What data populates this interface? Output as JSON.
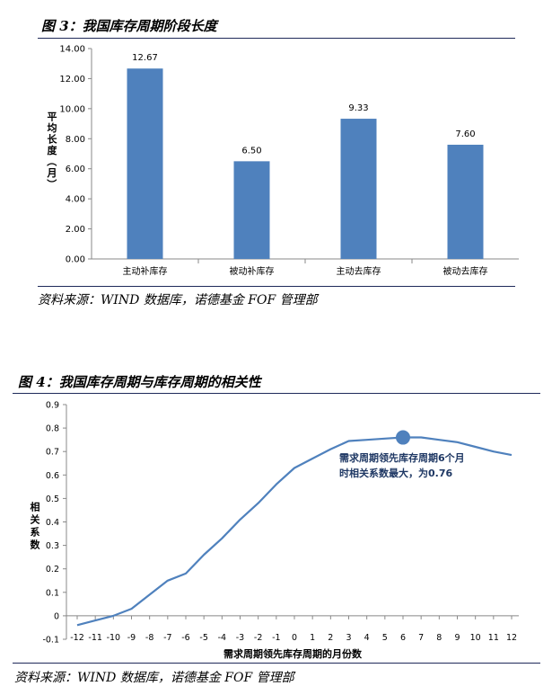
{
  "figure3": {
    "title": "图 3：我国库存周期阶段长度",
    "source": "资料来源：WIND 数据库，诺德基金 FOF 管理部"
  },
  "figure4": {
    "title": "图 4：我国库存周期与库存周期的相关性",
    "source": "资料来源：WIND 数据库，诺德基金 FOF 管理部"
  },
  "colors": {
    "bar": "#4f81bd",
    "line": "#4f81bd",
    "rule": "#1f2a5a",
    "grid": "#d9d9d9"
  },
  "chart_data": [
    {
      "type": "bar",
      "categories": [
        "主动补库存",
        "被动补库存",
        "主动去库存",
        "被动去库存"
      ],
      "values": [
        12.67,
        6.5,
        9.33,
        7.6
      ],
      "data_labels": [
        "12.67",
        "6.50",
        "9.33",
        "7.60"
      ],
      "ylabel": "平均长度（月）",
      "ylim": [
        0,
        14
      ],
      "yticks": [
        "0.00",
        "2.00",
        "4.00",
        "6.00",
        "8.00",
        "10.00",
        "12.00",
        "14.00"
      ],
      "grid": false
    },
    {
      "type": "line",
      "x": [
        -12,
        -11,
        -10,
        -9,
        -8,
        -7,
        -6,
        -5,
        -4,
        -3,
        -2,
        -1,
        0,
        1,
        2,
        3,
        4,
        5,
        6,
        7,
        8,
        9,
        10,
        11,
        12
      ],
      "x_ticks": [
        "-12",
        "-11",
        "-10",
        "-9",
        "-8",
        "-7",
        "-6",
        "-5",
        "-4",
        "-3",
        "-2",
        "-1",
        "0",
        "1",
        "2",
        "3",
        "4",
        "5",
        "6",
        "7",
        "8",
        "9",
        "10",
        "11",
        "12"
      ],
      "values": [
        -0.04,
        -0.02,
        0.0,
        0.03,
        0.09,
        0.15,
        0.18,
        0.26,
        0.33,
        0.41,
        0.48,
        0.56,
        0.63,
        0.67,
        0.71,
        0.745,
        0.75,
        0.755,
        0.76,
        0.76,
        0.75,
        0.74,
        0.72,
        0.7,
        0.685
      ],
      "xlabel": "需求周期领先库存周期的月份数",
      "ylabel": "相关系数",
      "ylim": [
        -0.1,
        0.9
      ],
      "yticks": [
        "-0.1",
        "0",
        "0.1",
        "0.2",
        "0.3",
        "0.4",
        "0.5",
        "0.6",
        "0.7",
        "0.8",
        "0.9"
      ],
      "highlight": {
        "x": 6,
        "y": 0.76
      },
      "annotation": [
        "需求周期领先库存周期6个月",
        "时相关系数最大，为0.76"
      ],
      "grid": false
    }
  ]
}
